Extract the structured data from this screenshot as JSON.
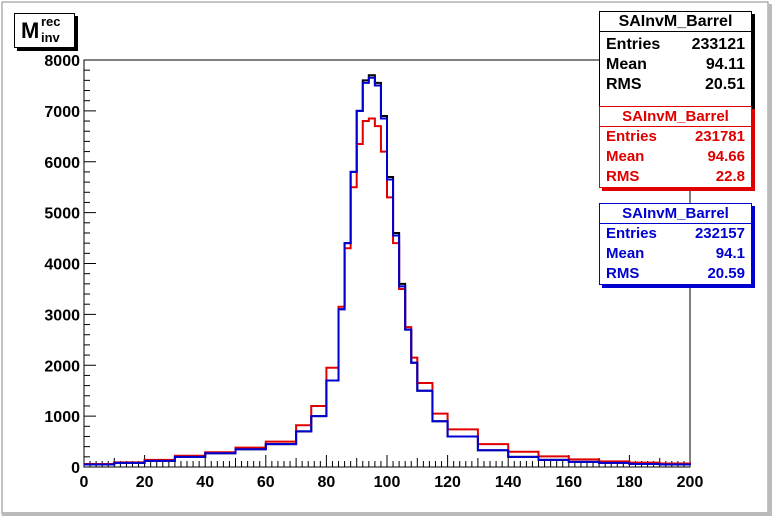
{
  "title": {
    "main": "M",
    "sup": "rec",
    "sub": "inv"
  },
  "stats": [
    {
      "name": "SAInvM_Barrel",
      "color": "#000000",
      "entries_label": "Entries",
      "entries": "233121",
      "mean_label": "Mean",
      "mean": "94.11",
      "rms_label": "RMS",
      "rms": "20.51"
    },
    {
      "name": "SAInvM_Barrel",
      "color": "#e00000",
      "entries_label": "Entries",
      "entries": "231781",
      "mean_label": "Mean",
      "mean": "94.66",
      "rms_label": "RMS",
      "rms": "22.8"
    },
    {
      "name": "SAInvM_Barrel",
      "color": "#0000d0",
      "entries_label": "Entries",
      "entries": "232157",
      "mean_label": "Mean",
      "mean": "94.1",
      "rms_label": "RMS",
      "rms": "20.59"
    }
  ],
  "chart_data": {
    "type": "line",
    "xlim": [
      0,
      200
    ],
    "ylim": [
      0,
      8000
    ],
    "x_ticks": [
      0,
      20,
      40,
      60,
      80,
      100,
      120,
      140,
      160,
      180,
      200
    ],
    "y_ticks": [
      0,
      1000,
      2000,
      3000,
      4000,
      5000,
      6000,
      7000,
      8000
    ],
    "x": [
      0,
      10,
      20,
      30,
      40,
      50,
      60,
      70,
      75,
      80,
      84,
      86,
      88,
      90,
      92,
      94,
      96,
      98,
      100,
      102,
      104,
      106,
      108,
      110,
      115,
      120,
      130,
      140,
      150,
      160,
      170,
      180,
      190,
      200
    ],
    "series": [
      {
        "color": "#000000",
        "values": [
          50,
          80,
          120,
          200,
          270,
          350,
          450,
          700,
          1000,
          1700,
          3100,
          4400,
          5800,
          7000,
          7600,
          7700,
          7550,
          6900,
          5700,
          4600,
          3600,
          2700,
          2050,
          1500,
          900,
          600,
          330,
          200,
          140,
          100,
          80,
          60,
          50,
          40
        ]
      },
      {
        "color": "#e00000",
        "values": [
          60,
          90,
          140,
          220,
          290,
          380,
          500,
          820,
          1200,
          1950,
          3150,
          4300,
          5500,
          6350,
          6800,
          6850,
          6700,
          6200,
          5300,
          4400,
          3500,
          2750,
          2150,
          1650,
          1050,
          740,
          450,
          300,
          210,
          150,
          110,
          85,
          70,
          55
        ]
      },
      {
        "color": "#0000d0",
        "values": [
          50,
          80,
          120,
          200,
          270,
          350,
          450,
          700,
          1000,
          1700,
          3100,
          4400,
          5800,
          7000,
          7550,
          7650,
          7500,
          6850,
          5650,
          4550,
          3550,
          2700,
          2050,
          1500,
          900,
          600,
          330,
          200,
          140,
          100,
          80,
          60,
          50,
          40
        ]
      }
    ]
  }
}
